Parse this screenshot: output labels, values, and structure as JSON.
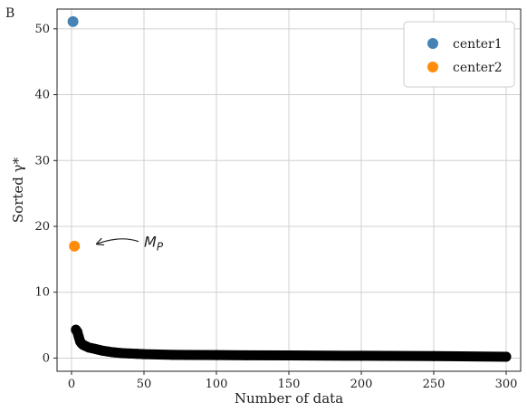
{
  "chart_data": {
    "type": "scatter",
    "panel_label": "B",
    "xlabel": "Number of data",
    "ylabel": "Sorted γ*",
    "xlim": [
      -10,
      310
    ],
    "ylim": [
      -2,
      53
    ],
    "xticks": [
      0,
      50,
      100,
      150,
      200,
      250,
      300
    ],
    "yticks": [
      0,
      10,
      20,
      30,
      40,
      50
    ],
    "grid": true,
    "legend_position": "top-right",
    "series": [
      {
        "name": "center1",
        "color": "#4682b4",
        "x": [
          1
        ],
        "y": [
          51.1
        ]
      },
      {
        "name": "center2",
        "color": "#ff8c0a",
        "x": [
          2
        ],
        "y": [
          17.0
        ]
      },
      {
        "color": "#000000",
        "x": [
          3,
          4,
          5,
          6,
          7,
          8,
          9,
          10,
          12,
          14,
          16,
          18,
          20,
          22,
          25,
          28,
          30,
          35,
          40,
          45,
          50,
          60,
          70,
          80,
          100,
          120,
          150,
          200,
          250,
          300
        ],
        "y": [
          4.3,
          4.0,
          3.2,
          2.5,
          2.2,
          2.0,
          1.9,
          1.8,
          1.6,
          1.5,
          1.4,
          1.3,
          1.2,
          1.1,
          1.0,
          0.9,
          0.85,
          0.75,
          0.7,
          0.65,
          0.6,
          0.55,
          0.5,
          0.48,
          0.45,
          0.42,
          0.4,
          0.35,
          0.3,
          0.2
        ]
      }
    ],
    "annotations": [
      {
        "text": "M",
        "subscript": "P",
        "target_x": 17,
        "target_y": 17.3,
        "text_x": 50,
        "text_y": 17.7
      }
    ]
  }
}
